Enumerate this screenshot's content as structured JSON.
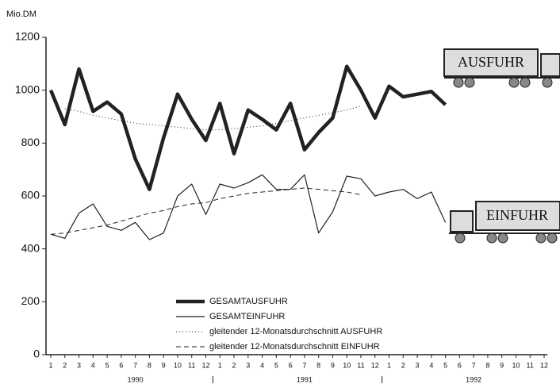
{
  "chart_data": {
    "type": "line",
    "y_label": "Mio.DM",
    "categories": [
      "1",
      "2",
      "3",
      "4",
      "5",
      "6",
      "7",
      "8",
      "9",
      "10",
      "11",
      "12",
      "1",
      "2",
      "3",
      "4",
      "5",
      "6",
      "7",
      "8",
      "9",
      "10",
      "11",
      "12",
      "1",
      "2",
      "3",
      "4",
      "5",
      "6",
      "7",
      "8",
      "9",
      "10",
      "11",
      "12"
    ],
    "groups": [
      "1990",
      "1991",
      "1992"
    ],
    "ylim": [
      0,
      1200
    ],
    "yticks": [
      0,
      200,
      400,
      600,
      800,
      1000,
      1200
    ],
    "series": [
      {
        "name": "GESAMTAUSFUHR",
        "color": "#222222",
        "style": "thick",
        "values": [
          1000,
          870,
          1080,
          920,
          955,
          910,
          740,
          625,
          820,
          985,
          890,
          810,
          950,
          760,
          925,
          890,
          850,
          950,
          775,
          840,
          895,
          1090,
          1000,
          895,
          1015,
          975,
          985,
          995,
          945,
          null,
          null,
          null,
          null,
          null,
          null,
          null
        ]
      },
      {
        "name": "GESAMTEINFUHR",
        "color": "#222222",
        "style": "solid",
        "values": [
          455,
          440,
          535,
          570,
          485,
          470,
          500,
          435,
          460,
          600,
          645,
          530,
          645,
          630,
          650,
          680,
          625,
          625,
          680,
          460,
          540,
          675,
          665,
          600,
          615,
          625,
          590,
          615,
          500,
          null,
          null,
          null,
          null,
          null,
          null,
          null
        ]
      },
      {
        "name": "gleitender 12-Monatsdurchschnitt AUSFUHR",
        "color": "#222222",
        "style": "dotted",
        "values": [
          null,
          930,
          920,
          905,
          895,
          885,
          875,
          870,
          865,
          860,
          855,
          850,
          850,
          855,
          860,
          865,
          875,
          885,
          895,
          905,
          915,
          925,
          940,
          null,
          null,
          null,
          null,
          null,
          null,
          null,
          null,
          null,
          null,
          null,
          null,
          null
        ]
      },
      {
        "name": "gleitender 12-Monatsdurchschnitt EINFUHR",
        "color": "#222222",
        "style": "dashed",
        "values": [
          455,
          460,
          470,
          480,
          490,
          505,
          520,
          535,
          545,
          560,
          570,
          575,
          590,
          600,
          610,
          615,
          620,
          625,
          630,
          625,
          620,
          615,
          605,
          null,
          null,
          null,
          null,
          null,
          null,
          null,
          null,
          null,
          null,
          null,
          null,
          null
        ]
      }
    ],
    "annotations": [
      "AUSFUHR",
      "EINFUHR"
    ]
  }
}
